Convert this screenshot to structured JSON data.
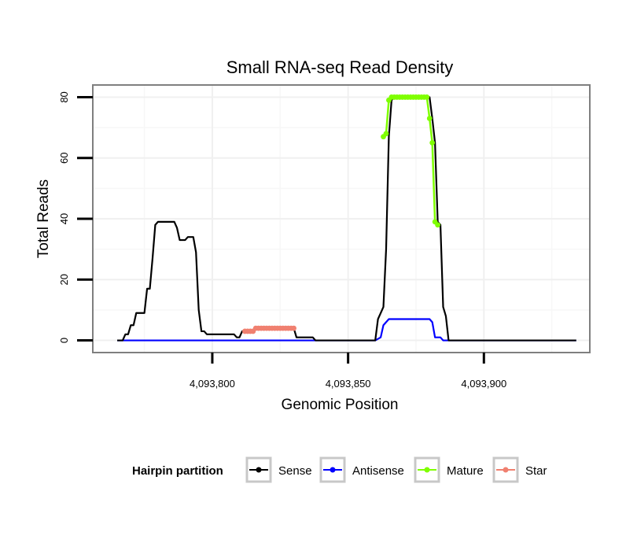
{
  "chart_data": {
    "type": "line",
    "title": "Small RNA-seq Read Density",
    "xlabel": "Genomic Position",
    "ylabel": "Total Reads",
    "xlim": [
      4093756,
      4093939
    ],
    "ylim": [
      -4,
      84
    ],
    "x_ticks": [
      4093800,
      4093850,
      4093900
    ],
    "x_tick_labels": [
      "4,093,800",
      "4,093,850",
      "4,093,900"
    ],
    "y_ticks": [
      0,
      20,
      40,
      60,
      80
    ],
    "y_tick_labels": [
      "0",
      "20",
      "40",
      "60",
      "80"
    ],
    "grid": true,
    "legend": {
      "title": "Hairpin partition",
      "placement": "bottom",
      "entries": [
        {
          "name": "Sense",
          "color": "#000000"
        },
        {
          "name": "Antisense",
          "color": "#0000ff"
        },
        {
          "name": "Mature",
          "color": "#7fff00"
        },
        {
          "name": "Star",
          "color": "#f08070"
        }
      ]
    },
    "series": [
      {
        "name": "Sense",
        "color": "#000000",
        "kind": "line",
        "points": [
          [
            4093765,
            0
          ],
          [
            4093767,
            0
          ],
          [
            4093768,
            2
          ],
          [
            4093769,
            2
          ],
          [
            4093770,
            5
          ],
          [
            4093771,
            5
          ],
          [
            4093772,
            9
          ],
          [
            4093775,
            9
          ],
          [
            4093776,
            17
          ],
          [
            4093777,
            17
          ],
          [
            4093778,
            27
          ],
          [
            4093779,
            38
          ],
          [
            4093780,
            39
          ],
          [
            4093786,
            39
          ],
          [
            4093787,
            37
          ],
          [
            4093788,
            33
          ],
          [
            4093790,
            33
          ],
          [
            4093791,
            34
          ],
          [
            4093793,
            34
          ],
          [
            4093794,
            29
          ],
          [
            4093795,
            10
          ],
          [
            4093796,
            3
          ],
          [
            4093797,
            3
          ],
          [
            4093798,
            2
          ],
          [
            4093808,
            2
          ],
          [
            4093809,
            1
          ],
          [
            4093810,
            1
          ],
          [
            4093811,
            3
          ],
          [
            4093812,
            3
          ],
          [
            4093813,
            3
          ],
          [
            4093817,
            4
          ],
          [
            4093830,
            4
          ],
          [
            4093831,
            1
          ],
          [
            4093837,
            1
          ],
          [
            4093838,
            0
          ],
          [
            4093860,
            0
          ],
          [
            4093861,
            7
          ],
          [
            4093862,
            9
          ],
          [
            4093863,
            11
          ],
          [
            4093864,
            30
          ],
          [
            4093865,
            67
          ],
          [
            4093866,
            79
          ],
          [
            4093867,
            80
          ],
          [
            4093880,
            80
          ],
          [
            4093881,
            73
          ],
          [
            4093882,
            65
          ],
          [
            4093883,
            39
          ],
          [
            4093884,
            38
          ],
          [
            4093885,
            11
          ],
          [
            4093886,
            8
          ],
          [
            4093887,
            0
          ],
          [
            4093934,
            0
          ]
        ]
      },
      {
        "name": "Antisense",
        "color": "#0000ff",
        "kind": "line",
        "points": [
          [
            4093765,
            0
          ],
          [
            4093860,
            0
          ],
          [
            4093862,
            1
          ],
          [
            4093863,
            5
          ],
          [
            4093864,
            6
          ],
          [
            4093865,
            7
          ],
          [
            4093866,
            7
          ],
          [
            4093880,
            7
          ],
          [
            4093881,
            6
          ],
          [
            4093882,
            1
          ],
          [
            4093884,
            1
          ],
          [
            4093885,
            0
          ],
          [
            4093934,
            0
          ]
        ]
      },
      {
        "name": "Mature",
        "color": "#7fff00",
        "kind": "points",
        "points": [
          [
            4093863,
            67
          ],
          [
            4093864,
            68
          ],
          [
            4093865,
            79
          ],
          [
            4093866,
            80
          ],
          [
            4093867,
            80
          ],
          [
            4093868,
            80
          ],
          [
            4093869,
            80
          ],
          [
            4093870,
            80
          ],
          [
            4093871,
            80
          ],
          [
            4093872,
            80
          ],
          [
            4093873,
            80
          ],
          [
            4093874,
            80
          ],
          [
            4093875,
            80
          ],
          [
            4093876,
            80
          ],
          [
            4093877,
            80
          ],
          [
            4093878,
            80
          ],
          [
            4093879,
            80
          ],
          [
            4093880,
            73
          ],
          [
            4093881,
            65
          ],
          [
            4093882,
            39
          ],
          [
            4093883,
            38
          ]
        ]
      },
      {
        "name": "Star",
        "color": "#f08070",
        "kind": "points",
        "points": [
          [
            4093812,
            3
          ],
          [
            4093813,
            3
          ],
          [
            4093814,
            3
          ],
          [
            4093815,
            3
          ],
          [
            4093816,
            4
          ],
          [
            4093817,
            4
          ],
          [
            4093818,
            4
          ],
          [
            4093819,
            4
          ],
          [
            4093820,
            4
          ],
          [
            4093821,
            4
          ],
          [
            4093822,
            4
          ],
          [
            4093823,
            4
          ],
          [
            4093824,
            4
          ],
          [
            4093825,
            4
          ],
          [
            4093826,
            4
          ],
          [
            4093827,
            4
          ],
          [
            4093828,
            4
          ],
          [
            4093829,
            4
          ],
          [
            4093830,
            4
          ]
        ]
      }
    ]
  }
}
